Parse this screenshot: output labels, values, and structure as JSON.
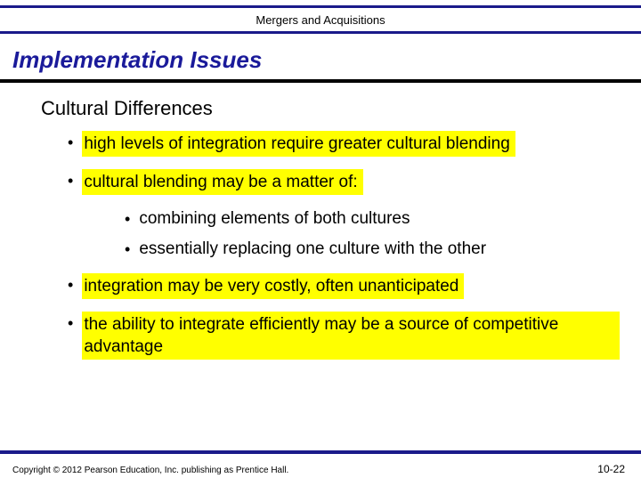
{
  "colors": {
    "accent_blue": "#1a1a8a",
    "highlight": "#ffff00",
    "background": "#ffffff",
    "text": "#000000"
  },
  "header": {
    "title": "Mergers and Acquisitions"
  },
  "title": "Implementation Issues",
  "subtitle": "Cultural Differences",
  "bullets": {
    "b1": "high levels of integration require greater cultural blending",
    "b2": "cultural blending may be a matter of:",
    "b2a": "combining elements of both cultures",
    "b2b": "essentially replacing one culture with the other",
    "b3": "integration may be very costly, often unanticipated",
    "b4": "the ability to integrate efficiently may be a source of competitive advantage"
  },
  "footer": {
    "copyright": "Copyright © 2012 Pearson Education, Inc. publishing as Prentice Hall.",
    "page": "10-22"
  }
}
